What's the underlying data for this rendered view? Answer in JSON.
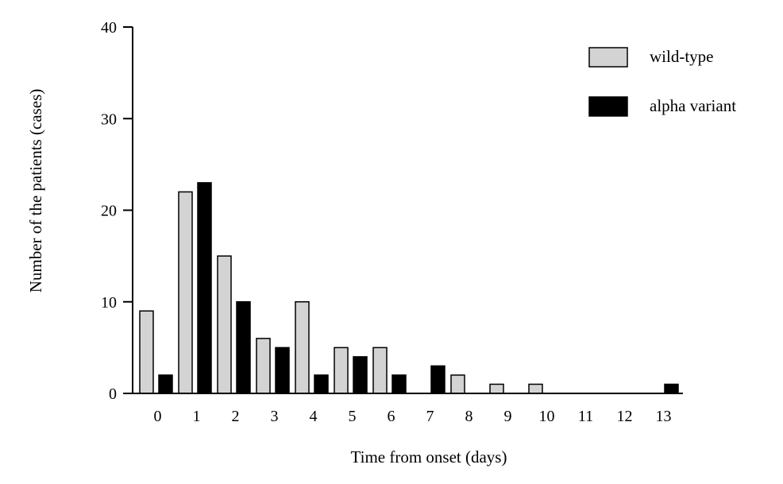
{
  "chart_data": {
    "type": "bar",
    "title": "",
    "xlabel": "Time from onset (days)",
    "ylabel": "Number of the patients (cases)",
    "ylim": [
      0,
      40
    ],
    "yticks": [
      "0",
      "10",
      "20",
      "30",
      "40"
    ],
    "categories": [
      "0",
      "1",
      "2",
      "3",
      "4",
      "5",
      "6",
      "7",
      "8",
      "9",
      "10",
      "11",
      "12",
      "13"
    ],
    "series": [
      {
        "name": "wild-type",
        "color": "#d3d3d3",
        "values": [
          9,
          22,
          15,
          6,
          10,
          5,
          5,
          0,
          2,
          1,
          1,
          0,
          0,
          0
        ]
      },
      {
        "name": "alpha variant",
        "color": "#000000",
        "values": [
          2,
          23,
          10,
          5,
          2,
          4,
          2,
          3,
          0,
          0,
          0,
          0,
          0,
          1
        ]
      }
    ],
    "legend_position": "top-right",
    "grid": false
  }
}
